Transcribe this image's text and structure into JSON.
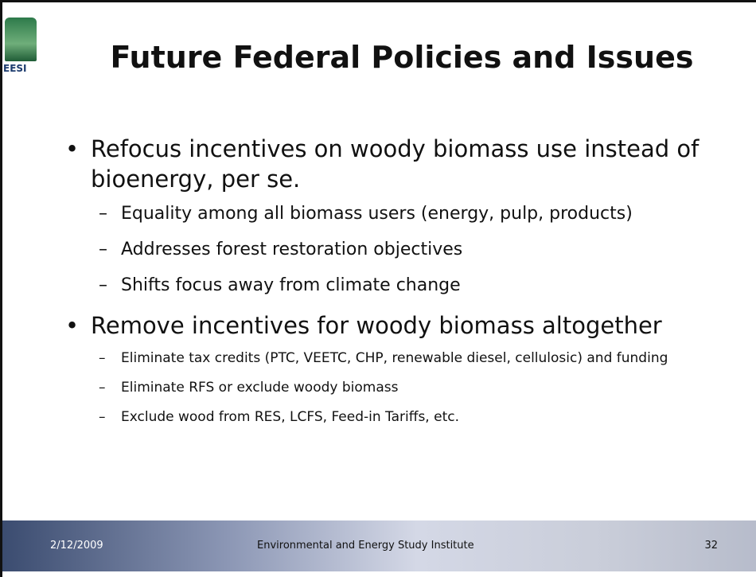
{
  "logo": {
    "label": "EESI"
  },
  "header": {
    "title": "Future Federal Policies and Issues"
  },
  "bullets": [
    {
      "text": "Refocus incentives on woody biomass use instead of bioenergy, per se.",
      "sub": [
        "Equality among all biomass users (energy, pulp, products)",
        "Addresses forest restoration objectives",
        "Shifts focus away from climate change"
      ]
    },
    {
      "text": "Remove incentives for woody biomass altogether",
      "sub": [
        "Eliminate tax credits (PTC, VEETC, CHP, renewable diesel, cellulosic) and funding",
        "Eliminate RFS or exclude woody biomass",
        "Exclude wood from RES, LCFS, Feed-in Tariffs, etc."
      ]
    }
  ],
  "footer": {
    "date": "2/12/2009",
    "org": "Environmental and Energy Study Institute",
    "page": "32"
  }
}
